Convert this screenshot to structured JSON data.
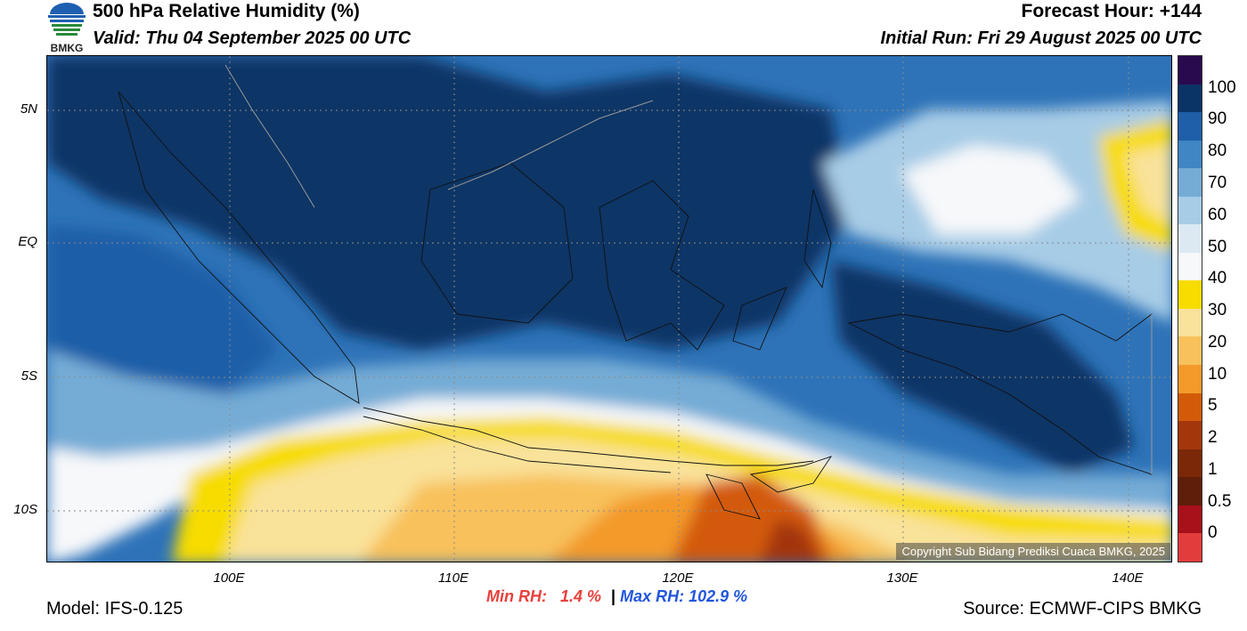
{
  "header": {
    "title": "500 hPa Relative Humidity (%)",
    "valid": "Valid: Thu 04 September 2025 00 UTC",
    "forecast_hour": "Forecast Hour: +144",
    "initial_run": "Initial Run: Fri 29 August 2025 00 UTC"
  },
  "logo": {
    "text": "BMKG"
  },
  "map": {
    "copyright": "Copyright Sub Bidang Prediksi Cuaca BMKG, 2025",
    "lat_labels": [
      "5N",
      "EQ",
      "5S",
      "10S"
    ],
    "lon_labels": [
      "100E",
      "110E",
      "120E",
      "130E",
      "140E"
    ]
  },
  "stats": {
    "min_label": "Min RH:",
    "min_value": "1.4 %",
    "separator": "|",
    "max_label": "Max RH:",
    "max_value": "102.9 %",
    "min_color": "#e8413c",
    "max_color": "#2255dd"
  },
  "footer": {
    "model": "Model: IFS-0.125",
    "source": "Source: ECMWF-CIPS BMKG"
  },
  "colorbar": {
    "labels": [
      "100",
      "90",
      "80",
      "70",
      "60",
      "50",
      "40",
      "30",
      "20",
      "10",
      "5",
      "2",
      "1",
      "0.5",
      "0"
    ],
    "colors": [
      "#2a0a4e",
      "#0b3466",
      "#1f5ea8",
      "#3f86c4",
      "#74acd6",
      "#a7cce6",
      "#dce9f3",
      "#f6f8fa",
      "#f7dc00",
      "#f9e29a",
      "#f8c15c",
      "#f39a2a",
      "#d35a08",
      "#a3360a",
      "#7a2808",
      "#5e1e0a",
      "#a8101a",
      "#e33c3c"
    ]
  }
}
